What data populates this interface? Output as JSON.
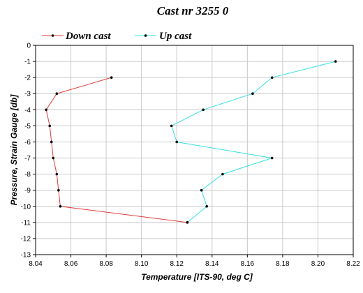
{
  "chart_data": {
    "type": "line",
    "title": "Cast nr 3255 0",
    "xlabel": "Temperature [ITS-90, deg C]",
    "ylabel": "Pressure, Strain Gauge [db]",
    "xlim": [
      8.04,
      8.22
    ],
    "ylim": [
      -13,
      0
    ],
    "xticks": [
      "8.04",
      "8.06",
      "8.08",
      "8.10",
      "8.12",
      "8.14",
      "8.16",
      "8.18",
      "8.20",
      "8.22"
    ],
    "yticks": [
      "0",
      "-1",
      "-2",
      "-3",
      "-4",
      "-5",
      "-6",
      "-7",
      "-8",
      "-9",
      "-10",
      "-11",
      "-12",
      "-13"
    ],
    "grid": true,
    "legend_position": "top-left",
    "series": [
      {
        "name": "Down cast",
        "color": "#e03c3c",
        "marker": "dot",
        "points": [
          {
            "x": 8.083,
            "y": -2
          },
          {
            "x": 8.052,
            "y": -3
          },
          {
            "x": 8.046,
            "y": -4
          },
          {
            "x": 8.048,
            "y": -5
          },
          {
            "x": 8.049,
            "y": -6
          },
          {
            "x": 8.05,
            "y": -7
          },
          {
            "x": 8.052,
            "y": -8
          },
          {
            "x": 8.053,
            "y": -9
          },
          {
            "x": 8.054,
            "y": -10
          },
          {
            "x": 8.126,
            "y": -11
          }
        ]
      },
      {
        "name": "Up cast",
        "color": "#33e0e0",
        "marker": "dot",
        "points": [
          {
            "x": 8.21,
            "y": -1
          },
          {
            "x": 8.174,
            "y": -2
          },
          {
            "x": 8.163,
            "y": -3
          },
          {
            "x": 8.135,
            "y": -4
          },
          {
            "x": 8.117,
            "y": -5
          },
          {
            "x": 8.12,
            "y": -6
          },
          {
            "x": 8.174,
            "y": -7
          },
          {
            "x": 8.146,
            "y": -8
          },
          {
            "x": 8.134,
            "y": -9
          },
          {
            "x": 8.137,
            "y": -10
          },
          {
            "x": 8.126,
            "y": -11
          }
        ]
      }
    ]
  }
}
